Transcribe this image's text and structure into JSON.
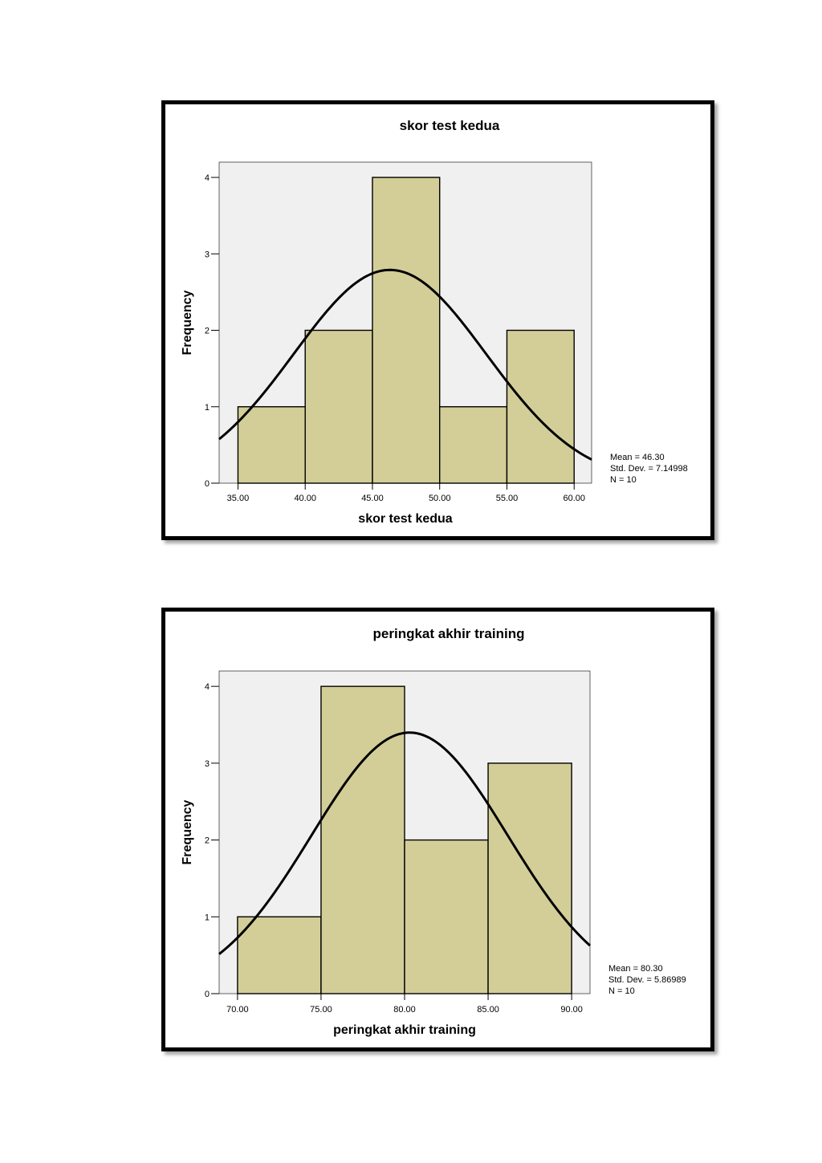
{
  "chart_data": [
    {
      "type": "bar",
      "title": "skor test kedua",
      "xlabel": "skor test kedua",
      "ylabel": "Frequency",
      "bin_edges": [
        35,
        40,
        45,
        50,
        55,
        60
      ],
      "values": [
        1,
        2,
        4,
        1,
        2
      ],
      "x_ticks": [
        "35.00",
        "40.00",
        "45.00",
        "50.00",
        "55.00",
        "60.00"
      ],
      "y_ticks": [
        "0",
        "1",
        "2",
        "3",
        "4"
      ],
      "xlim": [
        33.6,
        61.3
      ],
      "ylim": [
        0,
        4.2
      ],
      "normal_curve": {
        "mean": 46.3,
        "sd": 7.14998,
        "n": 10,
        "bin_width": 5
      },
      "stats": [
        "Mean = 46.30",
        "Std. Dev. = 7.14998",
        "N = 10"
      ],
      "grid": false,
      "colors": {
        "bar": "#d3ce98",
        "plot_bg": "#f0f0f0",
        "curve": "#000000"
      }
    },
    {
      "type": "bar",
      "title": "peringkat akhir training",
      "xlabel": "peringkat akhir training",
      "ylabel": "Frequency",
      "bin_edges": [
        70,
        75,
        80,
        85,
        90
      ],
      "values": [
        1,
        4,
        2,
        3
      ],
      "x_ticks": [
        "70.00",
        "75.00",
        "80.00",
        "85.00",
        "90.00"
      ],
      "y_ticks": [
        "0",
        "1",
        "2",
        "3",
        "4"
      ],
      "xlim": [
        68.9,
        91.1
      ],
      "ylim": [
        0,
        4.2
      ],
      "normal_curve": {
        "mean": 80.3,
        "sd": 5.86989,
        "n": 10,
        "bin_width": 5
      },
      "stats": [
        "Mean = 80.30",
        "Std. Dev. = 5.86989",
        "N = 10"
      ],
      "grid": false,
      "colors": {
        "bar": "#d3ce98",
        "plot_bg": "#f0f0f0",
        "curve": "#000000"
      }
    }
  ]
}
